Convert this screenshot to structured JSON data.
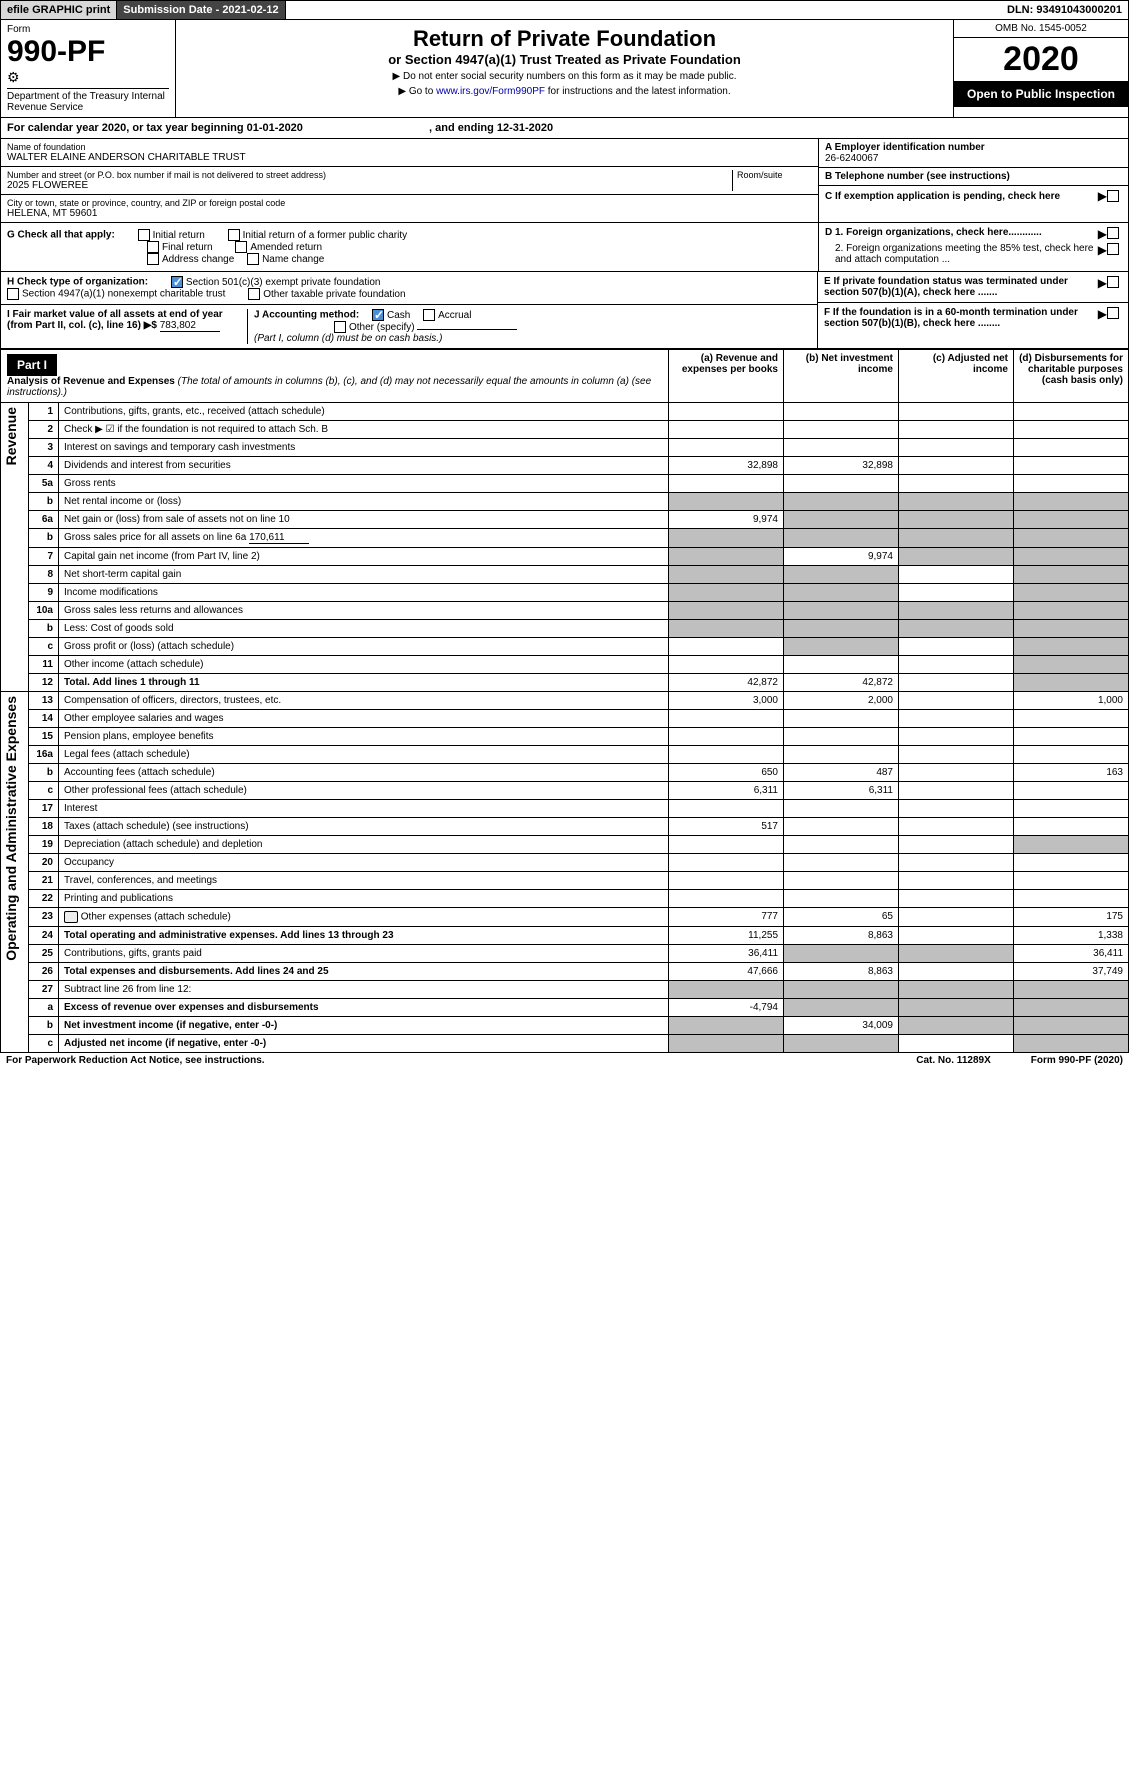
{
  "topbar": {
    "efile": "efile GRAPHIC print",
    "subdate_label": "Submission Date - 2021-02-12",
    "dln": "DLN: 93491043000201"
  },
  "header": {
    "form_label": "Form",
    "form_num": "990-PF",
    "dept": "Department of the Treasury\nInternal Revenue Service",
    "title": "Return of Private Foundation",
    "sub": "or Section 4947(a)(1) Trust Treated as Private Foundation",
    "note1": "▶ Do not enter social security numbers on this form as it may be made public.",
    "note2": "▶ Go to www.irs.gov/Form990PF for instructions and the latest information.",
    "link": "www.irs.gov/Form990PF",
    "omb": "OMB No. 1545-0052",
    "year": "2020",
    "open": "Open to Public Inspection"
  },
  "cal": {
    "text_a": "For calendar year 2020, or tax year beginning 01-01-2020",
    "text_b": ", and ending 12-31-2020"
  },
  "info": {
    "name_lbl": "Name of foundation",
    "name": "WALTER ELAINE ANDERSON CHARITABLE TRUST",
    "addr_lbl": "Number and street (or P.O. box number if mail is not delivered to street address)",
    "room_lbl": "Room/suite",
    "addr": "2025 FLOWEREE",
    "city_lbl": "City or town, state or province, country, and ZIP or foreign postal code",
    "city": "HELENA, MT  59601",
    "a_lbl": "A Employer identification number",
    "a_val": "26-6240067",
    "b_lbl": "B Telephone number (see instructions)",
    "b_val": "",
    "c_lbl": "C If exemption application is pending, check here"
  },
  "g": {
    "label": "G Check all that apply:",
    "opts": [
      "Initial return",
      "Initial return of a former public charity",
      "Final return",
      "Amended return",
      "Address change",
      "Name change"
    ],
    "d1": "D 1. Foreign organizations, check here............",
    "d2": "2. Foreign organizations meeting the 85% test, check here and attach computation ...",
    "e": "E  If private foundation status was terminated under section 507(b)(1)(A), check here .......",
    "f": "F  If the foundation is in a 60-month termination under section 507(b)(1)(B), check here ........"
  },
  "h": {
    "label": "H Check type of organization:",
    "o1": "Section 501(c)(3) exempt private foundation",
    "o2": "Section 4947(a)(1) nonexempt charitable trust",
    "o3": "Other taxable private foundation",
    "i": "I Fair market value of all assets at end of year (from Part II, col. (c), line 16) ▶$",
    "i_val": "783,802",
    "j": "J Accounting method:",
    "j_cash": "Cash",
    "j_acc": "Accrual",
    "j_other": "Other (specify)",
    "j_note": "(Part I, column (d) must be on cash basis.)"
  },
  "part1": {
    "title": "Part I",
    "desc": "Analysis of Revenue and Expenses",
    "desc_note": "(The total of amounts in columns (b), (c), and (d) may not necessarily equal the amounts in column (a) (see instructions).)",
    "cols": [
      "(a)   Revenue and expenses per books",
      "(b)   Net investment income",
      "(c)   Adjusted net income",
      "(d)   Disbursements for charitable purposes (cash basis only)"
    ]
  },
  "sections": {
    "revenue": "Revenue",
    "expenses": "Operating and Administrative Expenses"
  },
  "rows": [
    {
      "n": "1",
      "d": "Contributions, gifts, grants, etc., received (attach schedule)",
      "a": "",
      "b": "",
      "c": "",
      "x": ""
    },
    {
      "n": "2",
      "d": "Check ▶ ☑ if the foundation is not required to attach Sch. B",
      "a": "",
      "b": "",
      "c": "",
      "x": "",
      "ck": true
    },
    {
      "n": "3",
      "d": "Interest on savings and temporary cash investments",
      "a": "",
      "b": "",
      "c": "",
      "x": ""
    },
    {
      "n": "4",
      "d": "Dividends and interest from securities",
      "a": "32,898",
      "b": "32,898",
      "c": "",
      "x": ""
    },
    {
      "n": "5a",
      "d": "Gross rents",
      "a": "",
      "b": "",
      "c": "",
      "x": ""
    },
    {
      "n": "b",
      "d": "Net rental income or (loss)",
      "a": "",
      "b": "",
      "c": "",
      "x": "",
      "shade_a": true,
      "shade_b": true,
      "shade_c": true,
      "shade_x": true
    },
    {
      "n": "6a",
      "d": "Net gain or (loss) from sale of assets not on line 10",
      "a": "9,974",
      "b": "",
      "c": "",
      "x": "",
      "shade_b": true,
      "shade_c": true,
      "shade_x": true
    },
    {
      "n": "b",
      "d": "Gross sales price for all assets on line 6a",
      "sub": "170,611",
      "shade_a": true,
      "shade_b": true,
      "shade_c": true,
      "shade_x": true
    },
    {
      "n": "7",
      "d": "Capital gain net income (from Part IV, line 2)",
      "a": "",
      "b": "9,974",
      "c": "",
      "x": "",
      "shade_a": true,
      "shade_c": true,
      "shade_x": true
    },
    {
      "n": "8",
      "d": "Net short-term capital gain",
      "a": "",
      "b": "",
      "c": "",
      "x": "",
      "shade_a": true,
      "shade_b": true,
      "shade_x": true
    },
    {
      "n": "9",
      "d": "Income modifications",
      "a": "",
      "b": "",
      "c": "",
      "x": "",
      "shade_a": true,
      "shade_b": true,
      "shade_x": true
    },
    {
      "n": "10a",
      "d": "Gross sales less returns and allowances",
      "shade_a": true,
      "shade_b": true,
      "shade_c": true,
      "shade_x": true
    },
    {
      "n": "b",
      "d": "Less: Cost of goods sold",
      "shade_a": true,
      "shade_b": true,
      "shade_c": true,
      "shade_x": true
    },
    {
      "n": "c",
      "d": "Gross profit or (loss) (attach schedule)",
      "a": "",
      "b": "",
      "c": "",
      "x": "",
      "shade_b": true,
      "shade_x": true
    },
    {
      "n": "11",
      "d": "Other income (attach schedule)",
      "a": "",
      "b": "",
      "c": "",
      "x": "",
      "shade_x": true
    },
    {
      "n": "12",
      "d": "Total. Add lines 1 through 11",
      "a": "42,872",
      "b": "42,872",
      "c": "",
      "x": "",
      "bold": true,
      "shade_x": true
    }
  ],
  "exp_rows": [
    {
      "n": "13",
      "d": "Compensation of officers, directors, trustees, etc.",
      "a": "3,000",
      "b": "2,000",
      "c": "",
      "x": "1,000"
    },
    {
      "n": "14",
      "d": "Other employee salaries and wages",
      "a": "",
      "b": "",
      "c": "",
      "x": ""
    },
    {
      "n": "15",
      "d": "Pension plans, employee benefits",
      "a": "",
      "b": "",
      "c": "",
      "x": ""
    },
    {
      "n": "16a",
      "d": "Legal fees (attach schedule)",
      "a": "",
      "b": "",
      "c": "",
      "x": ""
    },
    {
      "n": "b",
      "d": "Accounting fees (attach schedule)",
      "a": "650",
      "b": "487",
      "c": "",
      "x": "163"
    },
    {
      "n": "c",
      "d": "Other professional fees (attach schedule)",
      "a": "6,311",
      "b": "6,311",
      "c": "",
      "x": ""
    },
    {
      "n": "17",
      "d": "Interest",
      "a": "",
      "b": "",
      "c": "",
      "x": ""
    },
    {
      "n": "18",
      "d": "Taxes (attach schedule) (see instructions)",
      "a": "517",
      "b": "",
      "c": "",
      "x": ""
    },
    {
      "n": "19",
      "d": "Depreciation (attach schedule) and depletion",
      "a": "",
      "b": "",
      "c": "",
      "x": "",
      "shade_x": true
    },
    {
      "n": "20",
      "d": "Occupancy",
      "a": "",
      "b": "",
      "c": "",
      "x": ""
    },
    {
      "n": "21",
      "d": "Travel, conferences, and meetings",
      "a": "",
      "b": "",
      "c": "",
      "x": ""
    },
    {
      "n": "22",
      "d": "Printing and publications",
      "a": "",
      "b": "",
      "c": "",
      "x": ""
    },
    {
      "n": "23",
      "d": "Other expenses (attach schedule)",
      "a": "777",
      "b": "65",
      "c": "",
      "x": "175",
      "icon": true
    },
    {
      "n": "24",
      "d": "Total operating and administrative expenses. Add lines 13 through 23",
      "a": "11,255",
      "b": "8,863",
      "c": "",
      "x": "1,338",
      "bold": true
    },
    {
      "n": "25",
      "d": "Contributions, gifts, grants paid",
      "a": "36,411",
      "b": "",
      "c": "",
      "x": "36,411",
      "shade_b": true,
      "shade_c": true
    },
    {
      "n": "26",
      "d": "Total expenses and disbursements. Add lines 24 and 25",
      "a": "47,666",
      "b": "8,863",
      "c": "",
      "x": "37,749",
      "bold": true
    },
    {
      "n": "27",
      "d": "Subtract line 26 from line 12:",
      "shade_a": true,
      "shade_b": true,
      "shade_c": true,
      "shade_x": true
    },
    {
      "n": "a",
      "d": "Excess of revenue over expenses and disbursements",
      "a": "-4,794",
      "b": "",
      "c": "",
      "x": "",
      "bold": true,
      "shade_b": true,
      "shade_c": true,
      "shade_x": true
    },
    {
      "n": "b",
      "d": "Net investment income (if negative, enter -0-)",
      "a": "",
      "b": "34,009",
      "c": "",
      "x": "",
      "bold": true,
      "shade_a": true,
      "shade_c": true,
      "shade_x": true
    },
    {
      "n": "c",
      "d": "Adjusted net income (if negative, enter -0-)",
      "a": "",
      "b": "",
      "c": "",
      "x": "",
      "bold": true,
      "shade_a": true,
      "shade_b": true,
      "shade_x": true
    }
  ],
  "footer": {
    "a": "For Paperwork Reduction Act Notice, see instructions.",
    "b": "Cat. No. 11289X",
    "c": "Form 990-PF (2020)"
  }
}
